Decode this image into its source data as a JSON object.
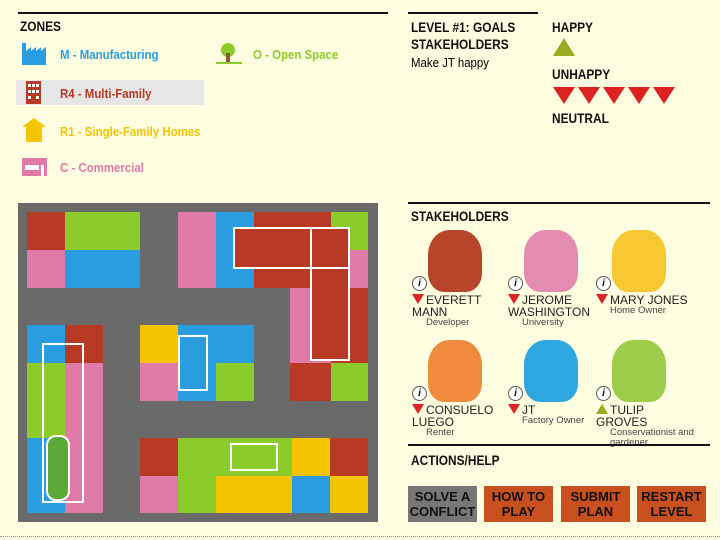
{
  "zones": {
    "title": "ZONES",
    "items": [
      {
        "label": "M - Manufacturing",
        "color": "#2a9de0",
        "icon": "factory-icon"
      },
      {
        "label": "O - Open Space",
        "color": "#8ccc2a",
        "icon": "tree-icon"
      },
      {
        "label": "R4 - Multi-Family",
        "color": "#b83a24",
        "icon": "apartment-building-icon",
        "selected": true
      },
      {
        "label": "R1 - Single-Family Homes",
        "color": "#f5c400",
        "icon": "house-icon"
      },
      {
        "label": "C - Commercial",
        "color": "#e07aa8",
        "icon": "storefront-icon"
      }
    ]
  },
  "level": {
    "title": "LEVEL #1: GOALS",
    "subtitle": "STAKEHOLDERS",
    "goal": "Make JT happy"
  },
  "mood": {
    "happy": "HAPPY",
    "happy_count": 1,
    "unhappy": "UNHAPPY",
    "unhappy_count": 5,
    "neutral": "NEUTRAL",
    "neutral_count": 0
  },
  "stakeholders": {
    "title": "STAKEHOLDERS",
    "people": [
      {
        "name": "EVERETT MANN",
        "role": "Developer",
        "mood": "unhappy",
        "color": "#b8442a"
      },
      {
        "name": "JEROME WASHINGTON",
        "role": "University",
        "mood": "unhappy",
        "color": "#e48bb0"
      },
      {
        "name": "MARY JONES",
        "role": "Home Owner",
        "mood": "unhappy",
        "color": "#f8c832"
      },
      {
        "name": "CONSUELO LUEGO",
        "role": "Renter",
        "mood": "unhappy",
        "color": "#ef8a3e"
      },
      {
        "name": "JT",
        "role": "Factory Owner",
        "mood": "unhappy",
        "color": "#2ea6df"
      },
      {
        "name": "TULIP GROVES",
        "role": "Conservationist and gardener",
        "mood": "happy",
        "color": "#9ccc4a"
      }
    ]
  },
  "actions": {
    "title": "ACTIONS/HELP",
    "buttons": [
      "SOLVE A CONFLICT",
      "HOW TO PLAY",
      "SUBMIT PLAN",
      "RESTART LEVEL"
    ]
  }
}
